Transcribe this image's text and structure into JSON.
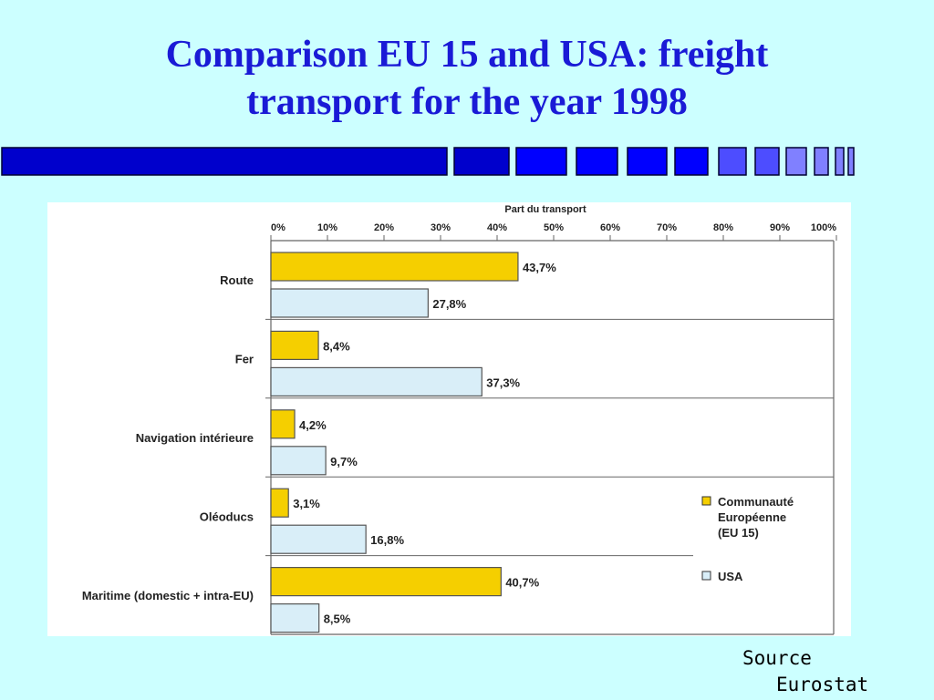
{
  "slide": {
    "title_line1": "Comparison EU 15 and USA:  freight",
    "title_line2": "transport for the year 1998",
    "source_line1": "Source",
    "source_line2": "Eurostat"
  },
  "colors": {
    "background": "#ccffff",
    "title": "#1a1ad6",
    "eu": "#f5cf00",
    "usa": "#d9eef8",
    "bar_stroke": "#555555",
    "deco_dark": "#0000cc",
    "deco_mid": "#0000ff",
    "deco_light": "#4d4dff",
    "deco_lighter": "#8080ff"
  },
  "chart_data": {
    "type": "bar",
    "orientation": "horizontal",
    "axis_title": "Part du transport",
    "xlim": [
      0,
      100
    ],
    "ticks": [
      "0%",
      "10%",
      "20%",
      "30%",
      "40%",
      "50%",
      "60%",
      "70%",
      "80%",
      "90%",
      "100%"
    ],
    "tick_values": [
      0,
      10,
      20,
      30,
      40,
      50,
      60,
      70,
      80,
      90,
      100
    ],
    "categories": [
      "Route",
      "Fer",
      "Navigation intérieure",
      "Oléoducs",
      "Maritime (domestic + intra-EU)"
    ],
    "series": [
      {
        "name": "Communauté Européenne (EU 15)",
        "legend_lines": [
          "Communauté",
          "Européenne",
          "(EU 15)"
        ],
        "values": [
          43.7,
          8.4,
          4.2,
          3.1,
          40.7
        ],
        "labels": [
          "43,7%",
          "8,4%",
          "4,2%",
          "3,1%",
          "40,7%"
        ]
      },
      {
        "name": "USA",
        "legend_lines": [
          "USA"
        ],
        "values": [
          27.8,
          37.3,
          9.7,
          16.8,
          8.5
        ],
        "labels": [
          "27,8%",
          "37,3%",
          "9,7%",
          "16,8%",
          "8,5%"
        ]
      }
    ],
    "legend_position": "right-bottom",
    "grid": false
  }
}
